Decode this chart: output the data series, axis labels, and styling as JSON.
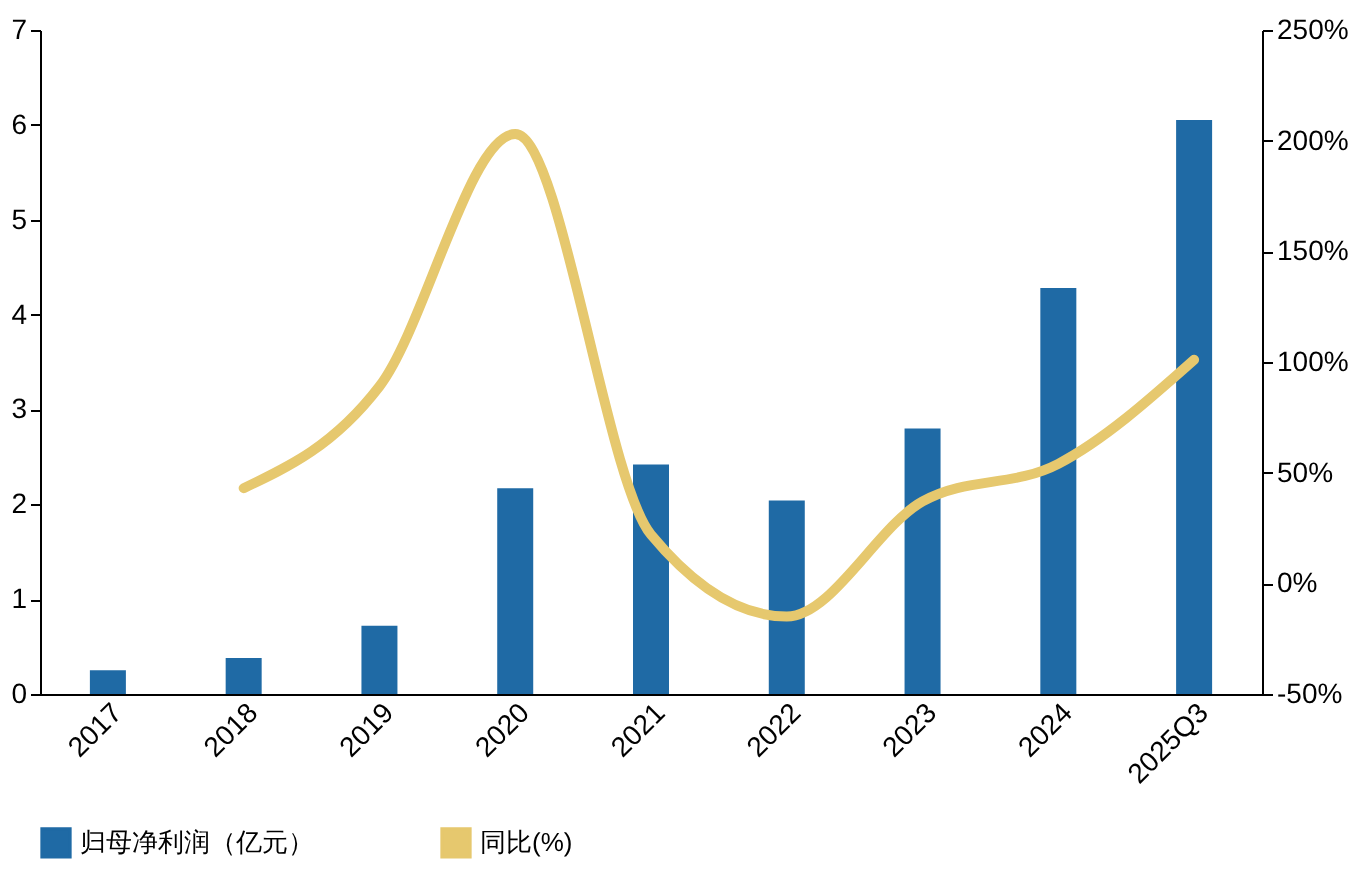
{
  "chart_data": {
    "type": "bar",
    "categories": [
      "2017",
      "2018",
      "2019",
      "2020",
      "2021",
      "2022",
      "2023",
      "2024",
      "2025Q3"
    ],
    "series": [
      {
        "name": "归母净利润（亿元）",
        "color": "#1f6aa5",
        "values": [
          0.25,
          0.38,
          0.72,
          2.17,
          2.42,
          2.04,
          2.8,
          4.28,
          6.05
        ]
      },
      {
        "name": "同比(%)",
        "type": "line",
        "axis": "y2",
        "color": "#e6c86e",
        "values": [
          null,
          43,
          89,
          203,
          22,
          -15,
          37,
          54,
          101
        ]
      }
    ],
    "ylim": [
      0,
      7
    ],
    "yticks": [
      0,
      1,
      2,
      3,
      4,
      5,
      6,
      7
    ],
    "y2lim": [
      -50,
      250
    ],
    "y2ticks": [
      {
        "value": -50,
        "label": "-50%"
      },
      {
        "value": 0,
        "label": "0%"
      },
      {
        "value": 50,
        "label": "50%"
      },
      {
        "value": 100,
        "label": "100%"
      },
      {
        "value": 150,
        "label": "150%"
      },
      {
        "value": 200,
        "label": "200%"
      },
      {
        "value": 250,
        "label": "250%"
      }
    ],
    "legend": "bottom",
    "grid": false
  }
}
